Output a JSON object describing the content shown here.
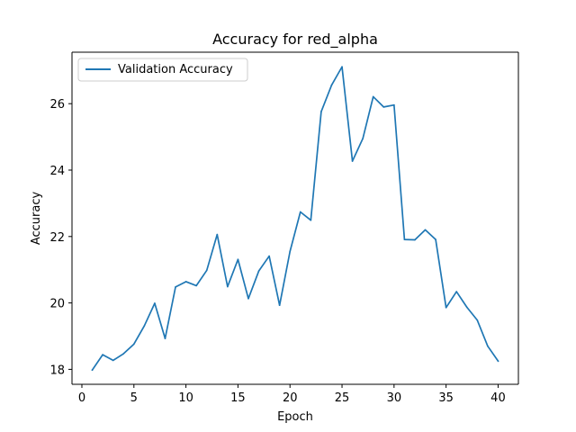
{
  "chart_data": {
    "type": "line",
    "title": "Accuracy for red_alpha",
    "xlabel": "Epoch",
    "ylabel": "Accuracy",
    "xlim": [
      -0.95,
      41.95
    ],
    "ylim": [
      17.55,
      27.55
    ],
    "xticks": [
      0,
      5,
      10,
      15,
      20,
      25,
      30,
      35,
      40
    ],
    "yticks": [
      18,
      20,
      22,
      24,
      26
    ],
    "grid": false,
    "legend": "top-left",
    "series": [
      {
        "name": "Validation Accuracy",
        "color": "#1f77b4",
        "x": [
          1,
          2,
          3,
          4,
          5,
          6,
          7,
          8,
          9,
          10,
          11,
          12,
          13,
          14,
          15,
          16,
          17,
          18,
          19,
          20,
          21,
          22,
          23,
          24,
          25,
          26,
          27,
          28,
          29,
          30,
          31,
          32,
          33,
          34,
          35,
          36,
          37,
          38,
          39,
          40
        ],
        "y": [
          17.98,
          18.44,
          18.27,
          18.47,
          18.76,
          19.31,
          19.99,
          18.93,
          20.48,
          20.64,
          20.52,
          20.98,
          22.06,
          20.49,
          21.31,
          20.13,
          20.96,
          21.41,
          19.93,
          21.55,
          22.74,
          22.49,
          25.76,
          26.56,
          27.11,
          24.27,
          24.95,
          26.21,
          25.9,
          25.96,
          21.91,
          21.9,
          22.2,
          21.91,
          19.86,
          20.34,
          19.87,
          19.48,
          18.7,
          18.25
        ]
      }
    ]
  }
}
